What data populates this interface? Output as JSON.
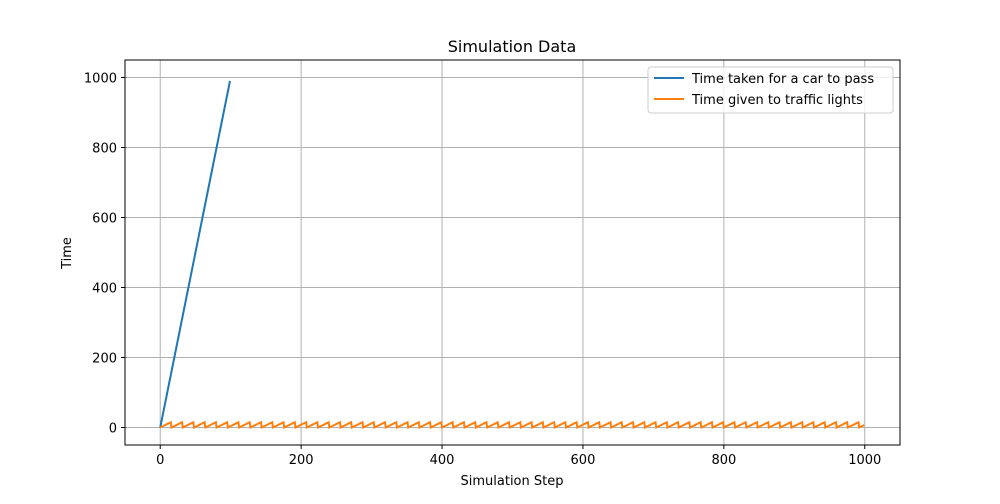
{
  "chart_data": {
    "type": "line",
    "title": "Simulation Data",
    "xlabel": "Simulation Step",
    "ylabel": "Time",
    "xlim": [
      -50,
      1050
    ],
    "ylim": [
      -50,
      1050
    ],
    "xticks": [
      0,
      200,
      400,
      600,
      800,
      1000
    ],
    "yticks": [
      0,
      200,
      400,
      600,
      800,
      1000
    ],
    "grid": true,
    "legend_position": "top-right",
    "series": [
      {
        "name": "Time taken for a car to pass",
        "color": "#1f77b4",
        "x": [
          0,
          10,
          20,
          30,
          40,
          50,
          60,
          70,
          80,
          90,
          99
        ],
        "y": [
          0,
          100,
          200,
          300,
          400,
          500,
          600,
          700,
          800,
          900,
          990
        ]
      },
      {
        "name": "Time given to traffic lights",
        "color": "#ff7f0e",
        "pattern": "sawtooth",
        "period": 16,
        "min": 0,
        "max": 16,
        "x_range": [
          0,
          999
        ]
      }
    ]
  }
}
